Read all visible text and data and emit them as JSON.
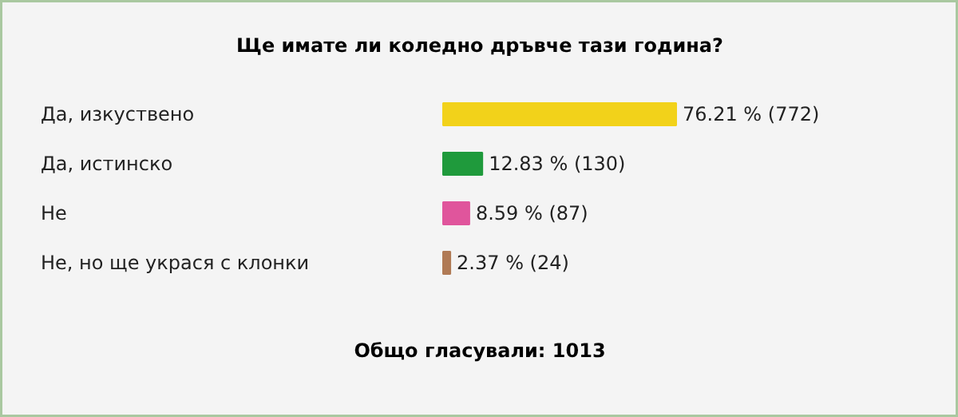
{
  "chart_data": {
    "type": "bar",
    "orientation": "horizontal",
    "title": "Ще имате ли коледно дръвче тази година?",
    "categories": [
      "Да, изкуствено",
      "Да, истинско",
      "Не",
      "Не, но ще украся с клонки"
    ],
    "values": [
      76.21,
      12.83,
      8.59,
      2.37
    ],
    "colors": [
      "#f2d21a",
      "#1f9a3c",
      "#e0559c",
      "#b07a55"
    ],
    "value_labels": [
      "76.21 % (772)",
      "12.83 % (130)",
      "8.59 % (87)",
      "2.37 % (24)"
    ],
    "annotations": [
      "Общо гласували: 1013"
    ]
  }
}
